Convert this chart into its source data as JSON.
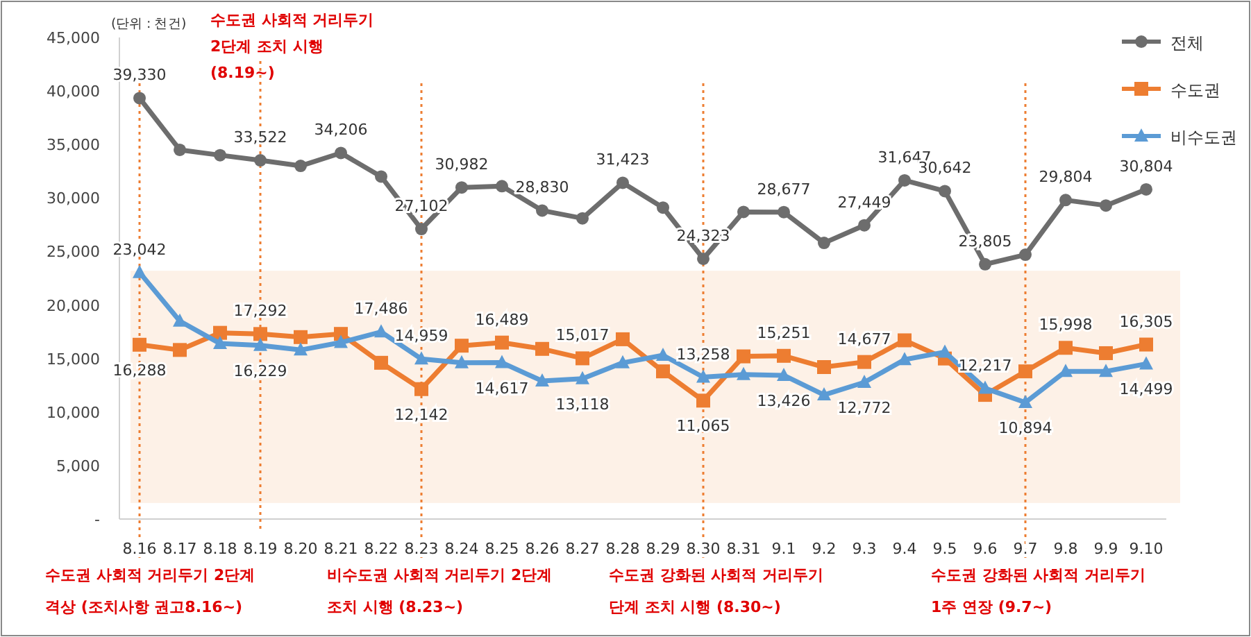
{
  "chart_data": {
    "type": "line",
    "categories": [
      "8.16",
      "8.17",
      "8.18",
      "8.19",
      "8.20",
      "8.21",
      "8.22",
      "8.23",
      "8.24",
      "8.25",
      "8.26",
      "8.27",
      "8.28",
      "8.29",
      "8.30",
      "8.31",
      "9.1",
      "9.2",
      "9.3",
      "9.4",
      "9.5",
      "9.6",
      "9.7",
      "9.8",
      "9.9",
      "9.10"
    ],
    "series": [
      {
        "name": "전체",
        "color": "#6d6d6d",
        "marker": "circle",
        "values": [
          39330,
          34500,
          34000,
          33522,
          33000,
          34206,
          32000,
          27102,
          30982,
          31100,
          28830,
          28100,
          31423,
          29100,
          24323,
          28700,
          28677,
          25800,
          27449,
          31647,
          30642,
          23805,
          24700,
          29804,
          29300,
          30804
        ],
        "value_labels": [
          "39,330",
          null,
          null,
          "33,522",
          null,
          "34,206",
          null,
          "27,102",
          "30,982",
          null,
          "28,830",
          null,
          "31,423",
          null,
          "24,323",
          null,
          "28,677",
          null,
          "27,449",
          "31,647",
          "30,642",
          "23,805",
          null,
          "29,804",
          null,
          "30,804"
        ]
      },
      {
        "name": "수도권",
        "color": "#ed7d31",
        "marker": "square",
        "values": [
          16288,
          15800,
          17400,
          17292,
          17000,
          17300,
          14600,
          12142,
          16200,
          16489,
          15900,
          15017,
          16800,
          13800,
          11065,
          15200,
          15251,
          14200,
          14677,
          16700,
          15000,
          11600,
          13800,
          15998,
          15500,
          16305
        ],
        "value_labels": [
          "16,288",
          null,
          null,
          "17,292",
          null,
          null,
          null,
          "12,142",
          null,
          "16,489",
          null,
          "15,017",
          null,
          null,
          "11,065",
          null,
          "15,251",
          null,
          "14,677",
          null,
          null,
          null,
          null,
          "15,998",
          null,
          "16,305"
        ]
      },
      {
        "name": "비수도권",
        "color": "#5b9bd5",
        "marker": "triangle",
        "values": [
          23042,
          18500,
          16400,
          16229,
          15800,
          16500,
          17486,
          14959,
          14600,
          14617,
          12900,
          13118,
          14600,
          15300,
          13258,
          13500,
          13426,
          11600,
          12772,
          14900,
          15600,
          12217,
          10894,
          13800,
          13800,
          14499
        ],
        "value_labels": [
          "23,042",
          null,
          null,
          "16,229",
          null,
          null,
          "17,486",
          "14,959",
          null,
          "14,617",
          null,
          "13,118",
          null,
          null,
          "13,258",
          null,
          "13,426",
          null,
          "12,772",
          null,
          null,
          "12,217",
          "10,894",
          null,
          null,
          "14,499"
        ]
      }
    ],
    "ylim": [
      0,
      45000
    ],
    "yticks": [
      {
        "value": 0,
        "label": "-"
      },
      {
        "value": 5000,
        "label": "5,000"
      },
      {
        "value": 10000,
        "label": "10,000"
      },
      {
        "value": 15000,
        "label": "15,000"
      },
      {
        "value": 20000,
        "label": "20,000"
      },
      {
        "value": 25000,
        "label": "25,000"
      },
      {
        "value": 30000,
        "label": "30,000"
      },
      {
        "value": 35000,
        "label": "35,000"
      },
      {
        "value": 40000,
        "label": "40,000"
      },
      {
        "value": 45000,
        "label": "45,000"
      }
    ],
    "ref_lines": [
      {
        "axis": "x",
        "value": "8.16",
        "label": "수도권 사회적 거리두기 2단계 격상 (조치사항 권고8.16~)",
        "color": "#ed7d31",
        "line_style": "dotted"
      },
      {
        "axis": "x",
        "value": "8.19",
        "label": "수도권 사회적 거리두기 2단계 조치 시행 (8.19~)",
        "color": "#ed7d31",
        "line_style": "dotted"
      },
      {
        "axis": "x",
        "value": "8.23",
        "label": "비수도권 사회적 거리두기 2단계 조치 시행 (8.23~)",
        "color": "#ed7d31",
        "line_style": "dotted"
      },
      {
        "axis": "x",
        "value": "8.30",
        "label": "수도권 강화된 사회적 거리두기 단계 조치 시행 (8.30~)",
        "color": "#ed7d31",
        "line_style": "dotted"
      },
      {
        "axis": "x",
        "value": "9.7",
        "label": "수도권 강화된 사회적 거리두기 1주 연장 (9.7~)",
        "color": "#ed7d31",
        "line_style": "dotted"
      }
    ],
    "bands": [
      {
        "axis": "y",
        "from": 1500,
        "to": 23200,
        "color": "#fdf1e7"
      }
    ],
    "annotations": [
      "(단위 : 천건)"
    ],
    "legend": "top right",
    "grid": false,
    "line_style": "solid"
  }
}
